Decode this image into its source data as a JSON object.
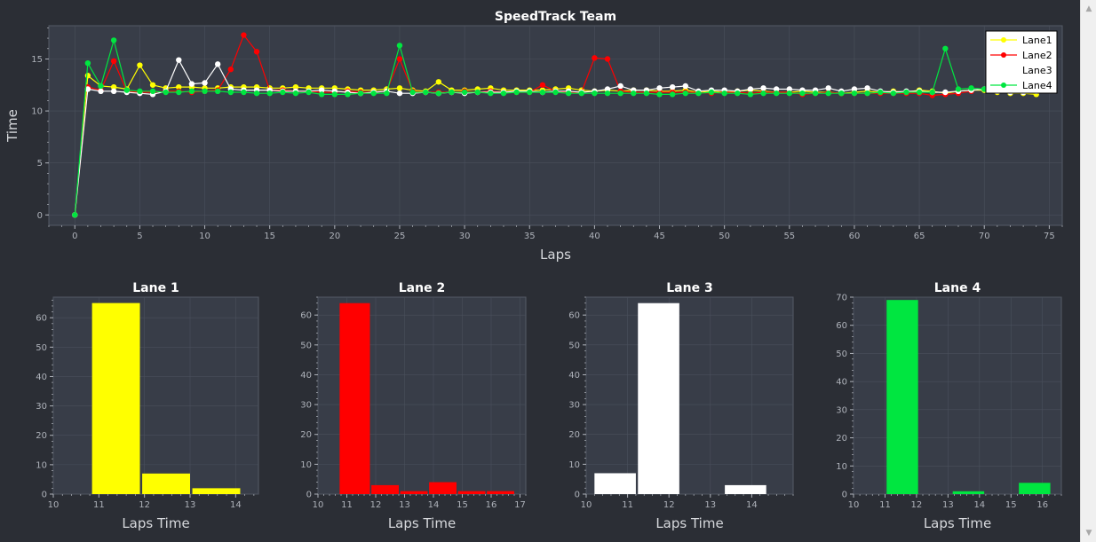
{
  "app": {
    "background": "#2b2e35",
    "plot_background": "#383d48",
    "grid_color": "#4a505c",
    "text_color": "#ffffff",
    "tick_color": "#aeb2ba"
  },
  "scrollbar": {
    "up_icon": "▲",
    "down_icon": "▼"
  },
  "chart_data": [
    {
      "type": "line",
      "title": "SpeedTrack Team",
      "xlabel": "Laps",
      "ylabel": "Time",
      "xlim": [
        -2,
        76
      ],
      "ylim": [
        -1,
        18.2
      ],
      "xticks": [
        0,
        5,
        10,
        15,
        20,
        25,
        30,
        35,
        40,
        45,
        50,
        55,
        60,
        65,
        70,
        75
      ],
      "yticks": [
        0,
        5,
        10,
        15
      ],
      "grid": true,
      "legend_position": "top-right",
      "series": [
        {
          "name": "Lane1",
          "color": "#ffff00",
          "x_start": 0,
          "values": [
            0,
            13.4,
            12.4,
            12.3,
            12.1,
            14.4,
            12.5,
            12.2,
            12.3,
            12.3,
            12.2,
            12.2,
            12.3,
            12.3,
            12.3,
            12.2,
            12.2,
            12.3,
            12.2,
            12.2,
            12.2,
            12.1,
            12.0,
            12.0,
            12.1,
            12.2,
            12.0,
            11.9,
            12.8,
            12.0,
            12.0,
            12.1,
            12.2,
            12.0,
            12.0,
            12.0,
            12.0,
            12.1,
            12.2,
            12.0,
            11.9,
            12.0,
            11.9,
            12.0,
            12.0,
            11.9,
            11.9,
            12.0,
            11.8,
            11.9,
            11.8,
            11.9,
            12.0,
            11.9,
            11.8,
            11.8,
            11.9,
            11.8,
            11.8,
            11.7,
            11.8,
            11.9,
            11.8,
            11.9,
            11.8,
            12.0,
            11.9,
            11.7,
            11.9,
            12.0,
            12.0,
            11.8,
            11.7,
            11.7,
            11.6
          ]
        },
        {
          "name": "Lane2",
          "color": "#ff0000",
          "x_start": 0,
          "values": [
            0,
            12.3,
            12.0,
            14.8,
            11.9,
            11.8,
            11.8,
            11.9,
            11.9,
            11.8,
            11.9,
            12.0,
            14.0,
            17.3,
            15.7,
            12.0,
            12.0,
            11.9,
            11.9,
            11.8,
            11.8,
            11.9,
            11.8,
            11.8,
            11.9,
            15.0,
            11.9,
            11.8,
            11.8,
            11.8,
            11.9,
            11.8,
            11.9,
            11.8,
            11.8,
            11.8,
            12.5,
            11.9,
            11.8,
            11.8,
            15.1,
            15.0,
            11.9,
            11.8,
            11.8,
            11.8,
            11.8,
            11.8,
            11.8,
            11.7,
            11.8,
            11.8,
            11.7,
            11.8,
            11.8,
            11.8,
            11.6,
            11.7,
            11.8,
            11.7,
            11.7,
            11.7,
            11.7,
            11.7,
            11.7,
            11.7,
            11.5,
            11.6,
            11.7,
            11.9
          ]
        },
        {
          "name": "Lane3",
          "color": "#ffffff",
          "x_start": 0,
          "values": [
            0,
            12.1,
            11.9,
            11.9,
            11.8,
            11.7,
            11.6,
            11.9,
            14.9,
            12.6,
            12.7,
            14.5,
            12.1,
            12.0,
            12.0,
            12.0,
            11.9,
            11.9,
            11.9,
            12.0,
            11.9,
            11.8,
            11.7,
            11.8,
            11.9,
            11.7,
            11.7,
            11.8,
            11.7,
            11.8,
            11.7,
            11.8,
            11.8,
            11.8,
            11.9,
            11.9,
            11.8,
            11.9,
            11.9,
            11.8,
            11.9,
            12.1,
            12.4,
            12.0,
            12.0,
            12.2,
            12.3,
            12.4,
            11.9,
            12.0,
            12.0,
            11.9,
            12.1,
            12.2,
            12.1,
            12.1,
            12.0,
            12.0,
            12.2,
            11.9,
            12.1,
            12.2,
            11.9,
            11.8,
            11.9,
            11.9,
            11.8,
            11.8,
            11.9,
            12.0,
            12.1,
            11.9,
            11.8,
            11.8,
            11.9
          ]
        },
        {
          "name": "Lane4",
          "color": "#00e640",
          "x_start": 0,
          "values": [
            0,
            14.6,
            12.4,
            16.8,
            12.0,
            11.9,
            11.9,
            11.8,
            11.8,
            11.9,
            11.9,
            11.9,
            11.8,
            11.8,
            11.7,
            11.7,
            11.8,
            11.7,
            11.8,
            11.6,
            11.6,
            11.6,
            11.7,
            11.7,
            11.7,
            16.3,
            11.8,
            11.8,
            11.7,
            11.8,
            11.8,
            11.8,
            11.7,
            11.7,
            11.8,
            11.8,
            11.8,
            11.8,
            11.7,
            11.7,
            11.7,
            11.7,
            11.7,
            11.7,
            11.7,
            11.6,
            11.6,
            11.7,
            11.7,
            11.8,
            11.7,
            11.7,
            11.6,
            11.7,
            11.7,
            11.7,
            11.7,
            11.7,
            11.7,
            11.7,
            11.7,
            11.7,
            11.8,
            11.7,
            11.8,
            11.8,
            11.8,
            16.0,
            12.1,
            12.2,
            12.1,
            12.1,
            12.1,
            12.0,
            12.0
          ]
        }
      ]
    },
    {
      "type": "bar",
      "title": "Lane 1",
      "xlabel": "Laps Time",
      "ylabel": "",
      "color": "#ffff00",
      "xlim": [
        10,
        14.5
      ],
      "ylim": [
        0,
        67
      ],
      "xticks": [
        10,
        11,
        12,
        13,
        14
      ],
      "yticks": [
        0,
        10,
        20,
        30,
        40,
        50,
        60
      ],
      "bars": [
        {
          "x0": 10.85,
          "x1": 11.9,
          "value": 65
        },
        {
          "x0": 11.95,
          "x1": 13.0,
          "value": 7
        },
        {
          "x0": 13.05,
          "x1": 14.1,
          "value": 2
        }
      ]
    },
    {
      "type": "bar",
      "title": "Lane 2",
      "xlabel": "Laps Time",
      "ylabel": "",
      "color": "#ff0000",
      "xlim": [
        10,
        17.2
      ],
      "ylim": [
        0,
        66
      ],
      "xticks": [
        10,
        11,
        12,
        13,
        14,
        15,
        16,
        17
      ],
      "yticks": [
        0,
        10,
        20,
        30,
        40,
        50,
        60
      ],
      "bars": [
        {
          "x0": 10.75,
          "x1": 11.8,
          "value": 64
        },
        {
          "x0": 11.85,
          "x1": 12.8,
          "value": 3
        },
        {
          "x0": 12.85,
          "x1": 13.8,
          "value": 1
        },
        {
          "x0": 13.85,
          "x1": 14.8,
          "value": 4
        },
        {
          "x0": 14.85,
          "x1": 15.8,
          "value": 1
        },
        {
          "x0": 15.85,
          "x1": 16.8,
          "value": 1
        }
      ]
    },
    {
      "type": "bar",
      "title": "Lane 3",
      "xlabel": "Laps Time",
      "ylabel": "",
      "color": "#ffffff",
      "xlim": [
        10,
        15
      ],
      "ylim": [
        0,
        66
      ],
      "xticks": [
        10,
        11,
        12,
        13,
        14
      ],
      "yticks": [
        0,
        10,
        20,
        30,
        40,
        50,
        60
      ],
      "bars": [
        {
          "x0": 10.2,
          "x1": 11.2,
          "value": 7
        },
        {
          "x0": 11.25,
          "x1": 12.25,
          "value": 64
        },
        {
          "x0": 12.3,
          "x1": 13.3,
          "value": 0
        },
        {
          "x0": 13.35,
          "x1": 14.35,
          "value": 3
        }
      ]
    },
    {
      "type": "bar",
      "title": "Lane 4",
      "xlabel": "Laps Time",
      "ylabel": "",
      "color": "#00e640",
      "xlim": [
        10,
        16.6
      ],
      "ylim": [
        0,
        70
      ],
      "xticks": [
        10,
        11,
        12,
        13,
        14,
        15,
        16
      ],
      "yticks": [
        0,
        10,
        20,
        30,
        40,
        50,
        60,
        70
      ],
      "bars": [
        {
          "x0": 11.05,
          "x1": 12.05,
          "value": 69
        },
        {
          "x0": 12.1,
          "x1": 13.1,
          "value": 0
        },
        {
          "x0": 13.15,
          "x1": 14.15,
          "value": 1
        },
        {
          "x0": 14.2,
          "x1": 15.2,
          "value": 0
        },
        {
          "x0": 15.25,
          "x1": 16.25,
          "value": 4
        }
      ]
    }
  ]
}
